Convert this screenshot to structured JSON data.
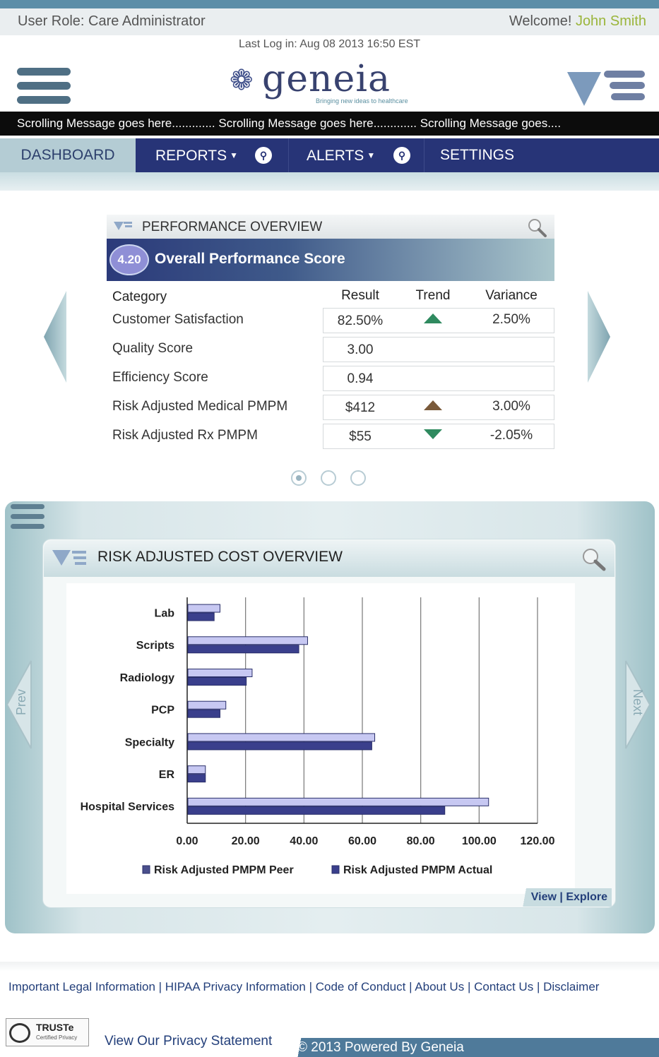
{
  "header": {
    "role_label": "User Role: Care Administrator",
    "welcome_label": "Welcome!",
    "user_name": "John Smith",
    "last_login": "Last Log in: Aug 08 2013 16:50 EST",
    "logo_word": "geneia",
    "logo_tagline": "Bringing new ideas to healthcare",
    "ticker": "Scrolling Message goes here............. Scrolling Message goes here............. Scrolling Message goes...."
  },
  "nav": {
    "tabs": [
      {
        "label": "DASHBOARD"
      },
      {
        "label": "REPORTS"
      },
      {
        "label": "ALERTS"
      },
      {
        "label": "SETTINGS"
      }
    ]
  },
  "performance": {
    "title": "PERFORMANCE OVERVIEW",
    "score": "4.20",
    "score_title": "Overall Performance Score",
    "columns": [
      "Category",
      "Result",
      "Trend",
      "Variance"
    ],
    "rows": [
      {
        "category": "Customer Satisfaction",
        "result": "82.50%",
        "trend": "up-green",
        "variance": "2.50%"
      },
      {
        "category": "Quality Score",
        "result": "3.00",
        "trend": "",
        "variance": ""
      },
      {
        "category": "Efficiency Score",
        "result": "0.94",
        "trend": "",
        "variance": ""
      },
      {
        "category": "Risk Adjusted Medical PMPM",
        "result": "$412",
        "trend": "up-brown",
        "variance": "3.00%"
      },
      {
        "category": "Risk Adjusted Rx PMPM",
        "result": "$55",
        "trend": "down-green",
        "variance": "-2.05%"
      }
    ],
    "pager": {
      "pages": 3,
      "current": 1
    }
  },
  "cost": {
    "title": "RISK ADJUSTED COST OVERVIEW",
    "prev_label": "Prev",
    "next_label": "Next",
    "view_label": "View",
    "explore_label": "Explore",
    "link_separator": "|"
  },
  "chart_data": {
    "type": "bar",
    "orientation": "horizontal",
    "categories": [
      "Lab",
      "Scripts",
      "Radiology",
      "PCP",
      "Specialty",
      "ER",
      "Hospital Services"
    ],
    "series": [
      {
        "name": "Risk Adjusted PMPM Peer",
        "values": [
          11,
          41,
          22,
          13,
          64,
          6,
          103
        ],
        "color": "#c7c8f2"
      },
      {
        "name": "Risk Adjusted PMPM Actual",
        "values": [
          9,
          38,
          20,
          11,
          63,
          6,
          88
        ],
        "color": "#3a3f8c"
      }
    ],
    "xlim": [
      0,
      120
    ],
    "xticks": [
      "0.00",
      "20.00",
      "40.00",
      "60.00",
      "80.00",
      "100.00",
      "120.00"
    ],
    "grid": true,
    "legend": "bottom"
  },
  "footer": {
    "links": [
      "Important Legal Information",
      "HIPAA Privacy Information",
      "Code of Conduct",
      "About Us",
      "Contact Us",
      "Disclaimer"
    ],
    "separator": "|",
    "truste_name": "TRUSTe",
    "truste_sub": "Certified Privacy",
    "privacy_statement": "View Our Privacy Statement",
    "powered_by": "© 2013 Powered By Geneia"
  },
  "colors": {
    "nav": "#273477",
    "accent_green": "#9ab53a",
    "teal": "#5c8ea8"
  }
}
